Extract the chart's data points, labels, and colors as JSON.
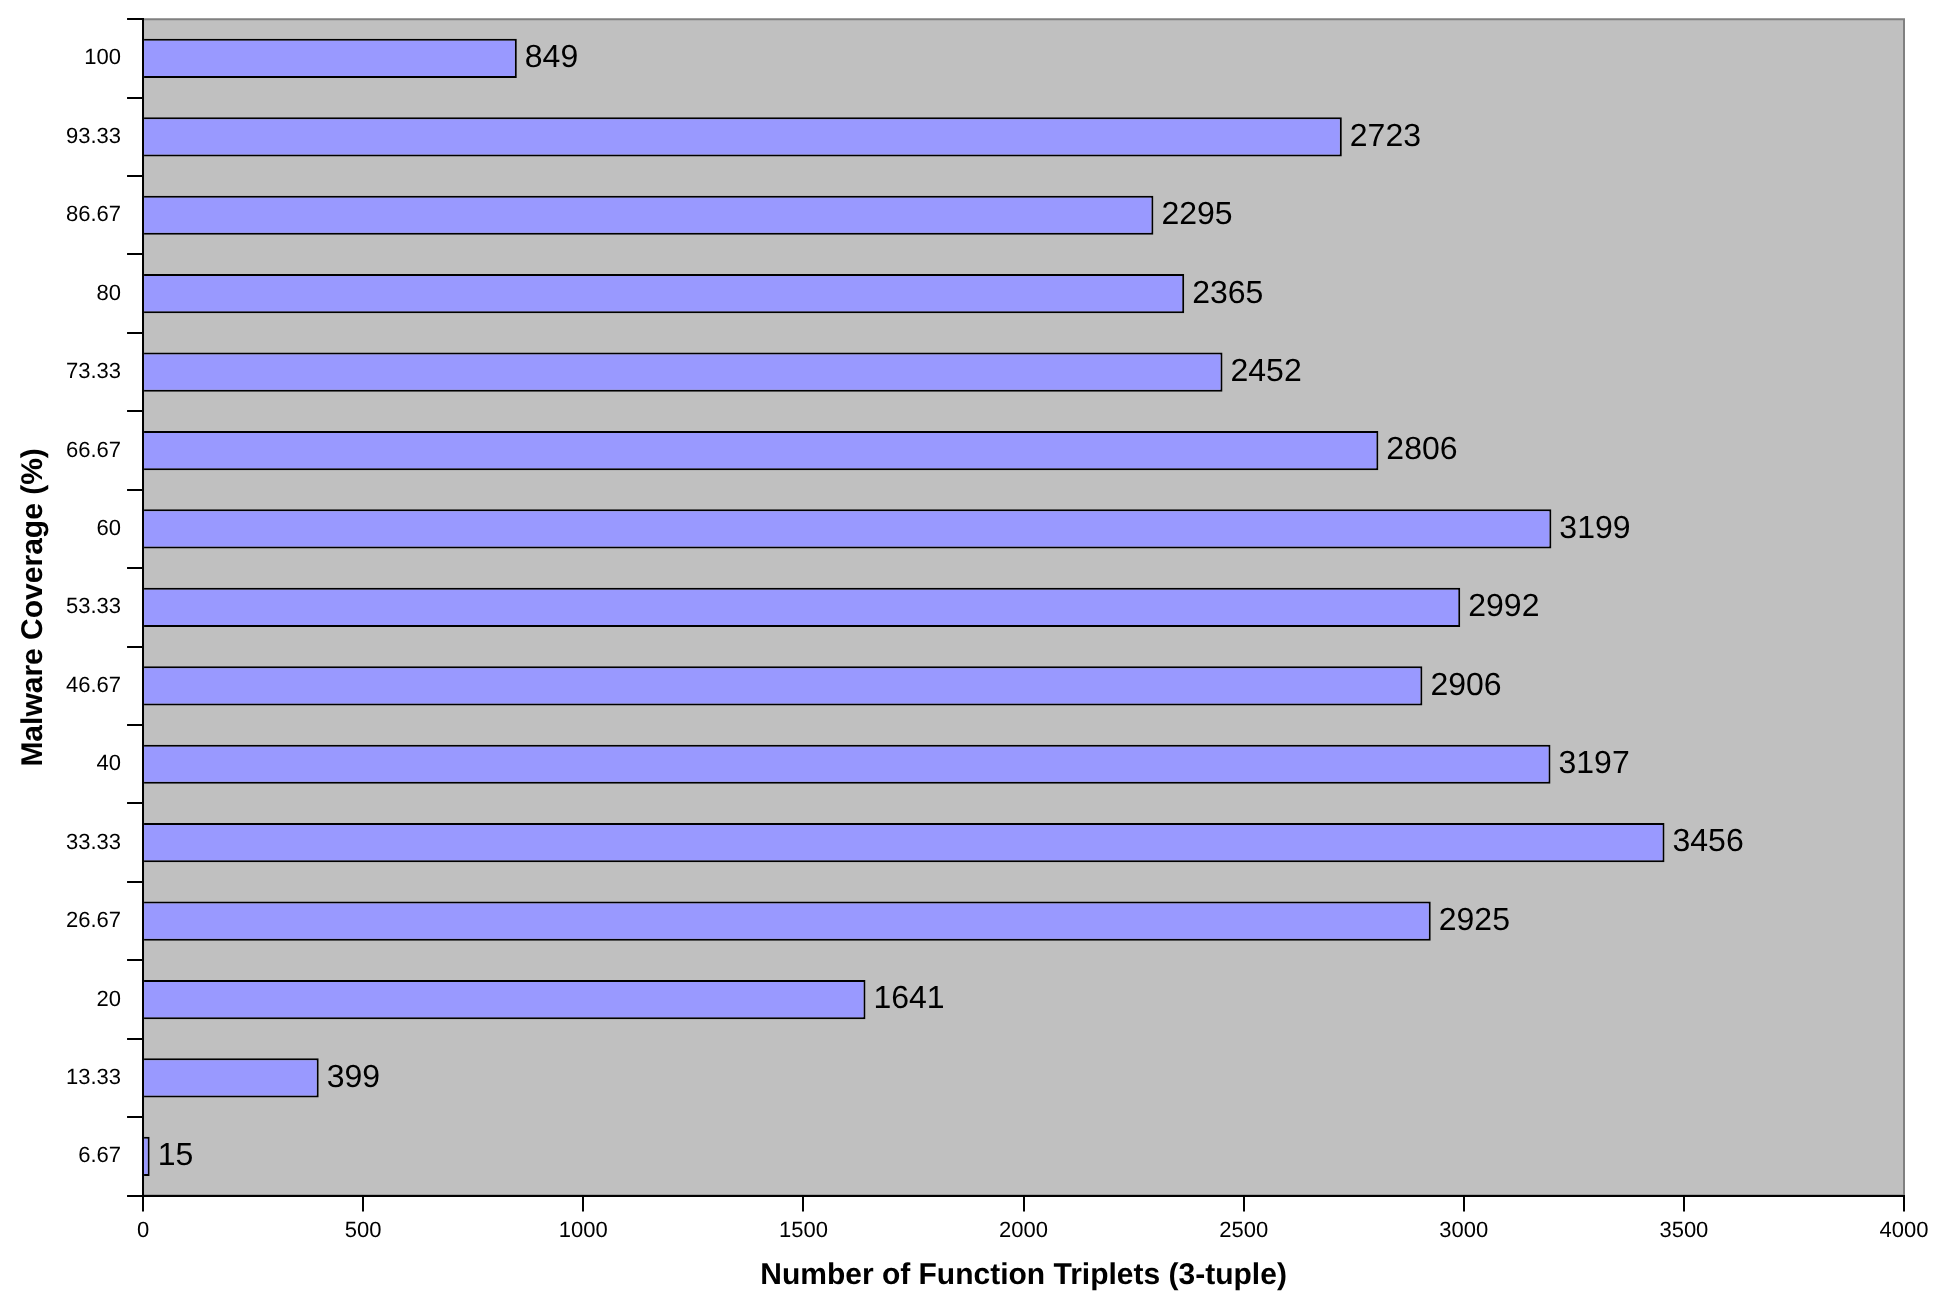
{
  "chart_data": {
    "type": "bar",
    "orientation": "horizontal",
    "xlabel": "Number of Function Triplets (3-tuple)",
    "ylabel": "Malware Coverage (%)",
    "categories": [
      "100",
      "93.33",
      "86.67",
      "80",
      "73.33",
      "66.67",
      "60",
      "53.33",
      "46.67",
      "40",
      "33.33",
      "26.67",
      "20",
      "13.33",
      "6.67"
    ],
    "values": [
      849,
      2723,
      2295,
      2365,
      2452,
      2806,
      3199,
      2992,
      2906,
      3197,
      3456,
      2925,
      1641,
      399,
      15
    ],
    "color": "#9999ff",
    "xlim": [
      0,
      4000
    ],
    "xticks": [
      0,
      500,
      1000,
      1500,
      2000,
      2500,
      3000,
      3500,
      4000
    ],
    "grid": false,
    "legend": false,
    "data_labels": true
  }
}
